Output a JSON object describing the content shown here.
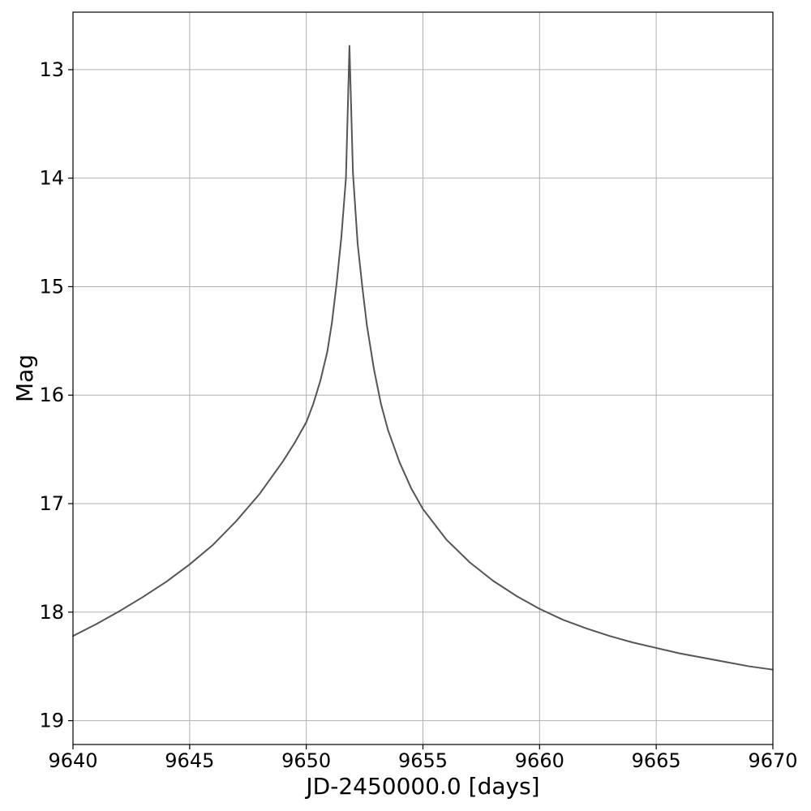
{
  "chart_data": {
    "type": "line",
    "title": "",
    "xlabel": "JD-2450000.0 [days]",
    "ylabel": "Mag",
    "xlim": [
      9640,
      9670
    ],
    "ylim": [
      19.22,
      12.47
    ],
    "y_inverted": true,
    "grid": true,
    "x_ticks": [
      9640,
      9645,
      9650,
      9655,
      9660,
      9665,
      9670
    ],
    "x_tick_labels": [
      "9640",
      "9645",
      "9650",
      "9655",
      "9660",
      "9665",
      "9670"
    ],
    "y_ticks": [
      13,
      14,
      15,
      16,
      17,
      18,
      19
    ],
    "y_tick_labels": [
      "13",
      "14",
      "15",
      "16",
      "17",
      "18",
      "19"
    ],
    "series": [
      {
        "color": "#555555",
        "x": [
          9640,
          9641,
          9642,
          9643,
          9644,
          9645,
          9646,
          9647,
          9648,
          9649,
          9649.5,
          9650,
          9650.3,
          9650.6,
          9650.9,
          9651.1,
          9651.3,
          9651.5,
          9651.7,
          9651.85,
          9652.0,
          9652.2,
          9652.4,
          9652.6,
          9652.9,
          9653.2,
          9653.5,
          9654,
          9654.5,
          9655,
          9656,
          9657,
          9658,
          9659,
          9660,
          9661,
          9662,
          9663,
          9664,
          9665,
          9666,
          9667,
          9668,
          9669,
          9670
        ],
        "y": [
          18.22,
          18.11,
          17.99,
          17.86,
          17.72,
          17.56,
          17.38,
          17.16,
          16.91,
          16.61,
          16.44,
          16.25,
          16.08,
          15.87,
          15.6,
          15.33,
          14.97,
          14.55,
          14.0,
          12.78,
          13.95,
          14.6,
          15.0,
          15.36,
          15.76,
          16.08,
          16.32,
          16.62,
          16.86,
          17.05,
          17.33,
          17.54,
          17.71,
          17.85,
          17.97,
          18.07,
          18.15,
          18.22,
          18.28,
          18.33,
          18.38,
          18.42,
          18.46,
          18.5,
          18.53
        ]
      }
    ]
  }
}
